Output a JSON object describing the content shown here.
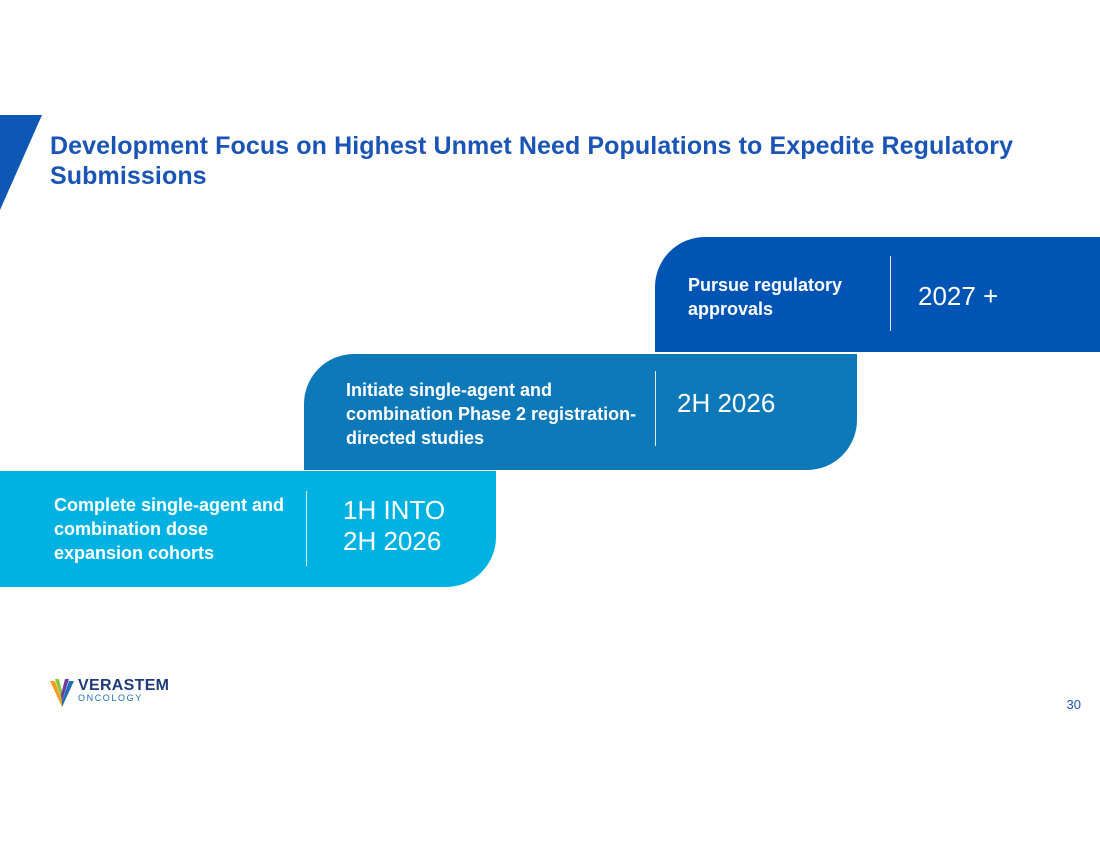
{
  "slide": {
    "title": "Development Focus on Highest Unmet Need Populations to Expedite Regulatory Submissions",
    "page_number": "30"
  },
  "steps": [
    {
      "label": "Complete single-agent and combination dose expansion cohorts",
      "date": "1H INTO 2H 2026",
      "color": "#00b2e2"
    },
    {
      "label": "Initiate single-agent and combination Phase 2 registration-directed studies",
      "date": "2H 2026",
      "color": "#0e79b9"
    },
    {
      "label": "Pursue regulatory approvals",
      "date": "2027 +",
      "color": "#0054b4"
    }
  ],
  "logo": {
    "name": "VERASTEM",
    "subtitle": "ONCOLOGY"
  },
  "colors": {
    "title": "#1a55b5",
    "accent_bar": "#0e57b5"
  }
}
